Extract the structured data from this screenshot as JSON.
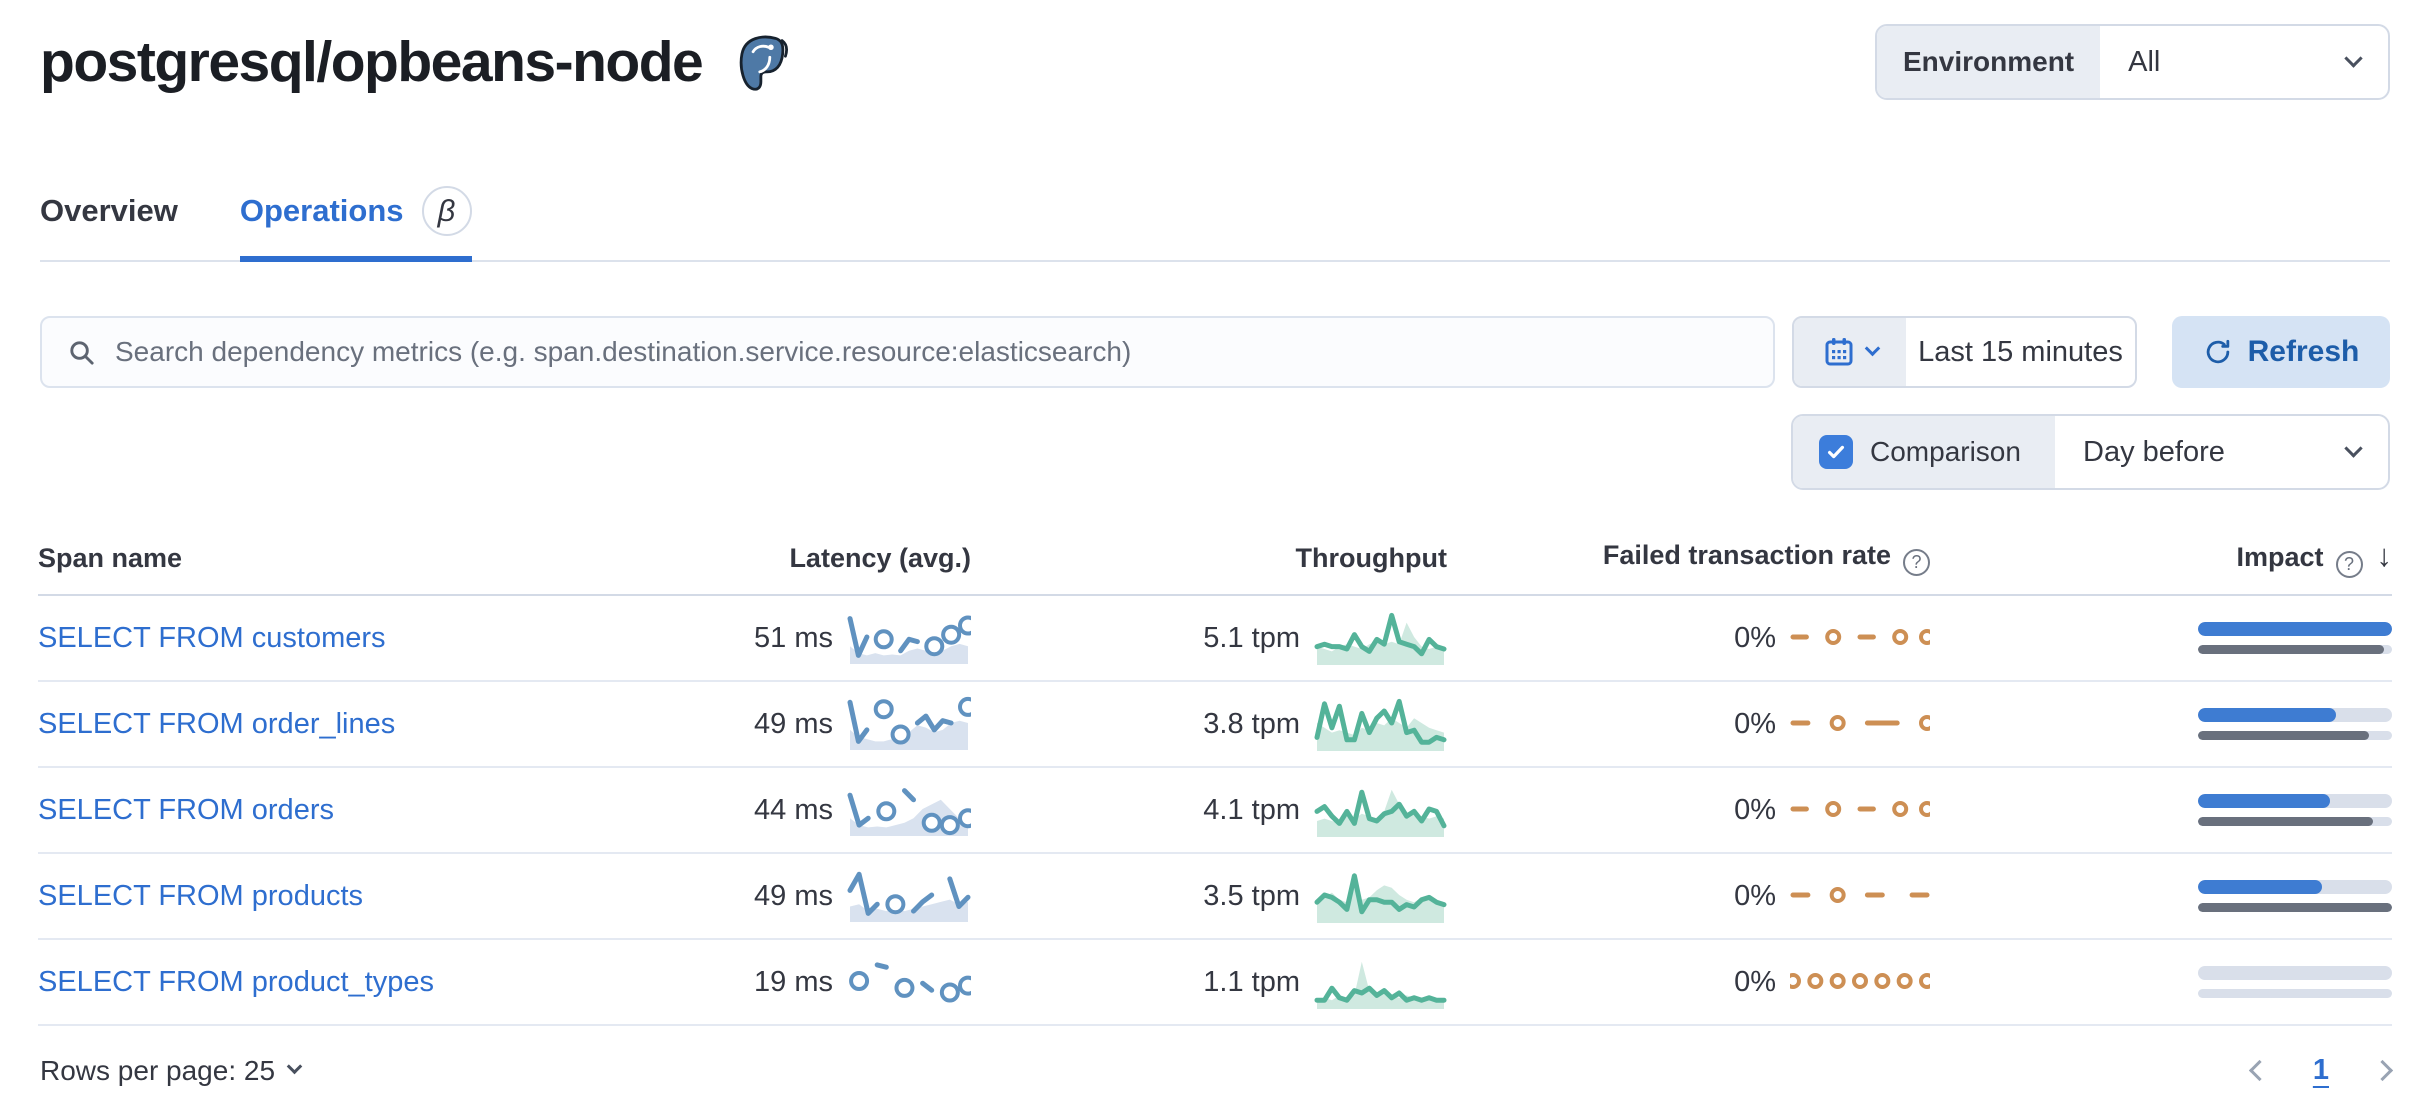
{
  "header": {
    "title": "postgresql/opbeans-node",
    "environment_label": "Environment",
    "environment_value": "All"
  },
  "tabs": [
    {
      "label": "Overview",
      "active": false
    },
    {
      "label": "Operations",
      "active": true,
      "badge": "β"
    }
  ],
  "toolbar": {
    "search_placeholder": "Search dependency metrics (e.g. span.destination.service.resource:elasticsearch)",
    "time_range": "Last 15 minutes",
    "refresh_label": "Refresh",
    "comparison_label": "Comparison",
    "comparison_checked": true,
    "comparison_value": "Day before"
  },
  "table": {
    "columns": [
      "Span name",
      "Latency (avg.)",
      "Throughput",
      "Failed transaction rate",
      "Impact"
    ],
    "sort": {
      "column": "Impact",
      "direction": "desc"
    },
    "rows": [
      {
        "span_name": "SELECT FROM customers",
        "latency": {
          "value": "51 ms",
          "spark": {
            "line": [
              0.9,
              0.1,
              0.5,
              null,
              0.45,
              null,
              0.2,
              0.45,
              0.4,
              null,
              0.3,
              null,
              0.55,
              null,
              0.75
            ],
            "area": [
              0.3,
              0.15,
              0.1,
              0.15,
              0.1,
              0.12,
              0.1,
              0.2,
              0.25,
              0.2,
              0.15,
              0.2,
              0.3,
              0.35,
              0.3
            ]
          }
        },
        "throughput": {
          "value": "5.1 tpm",
          "spark": {
            "line": [
              0.3,
              0.35,
              0.3,
              0.3,
              0.25,
              0.55,
              0.3,
              0.2,
              0.45,
              0.35,
              0.95,
              0.4,
              0.35,
              0.3,
              0.15,
              0.45,
              0.3,
              0.25
            ],
            "area": [
              0.3,
              0.25,
              0.2,
              0.3,
              0.35,
              0.3,
              0.25,
              0.35,
              0.4,
              0.35,
              0.4,
              0.35,
              0.8,
              0.5,
              0.3,
              0.25,
              0.3,
              0.25
            ]
          }
        },
        "failed_rate": {
          "value": "0%",
          "spark": {
            "line": [
              0.5,
              0.5,
              null,
              0.5,
              null,
              0.5,
              0.5,
              null,
              0.5,
              null,
              0.5
            ]
          }
        },
        "impact": {
          "current_pct": 100,
          "previous_pct": 96
        }
      },
      {
        "span_name": "SELECT FROM order_lines",
        "latency": {
          "value": "49 ms",
          "spark": {
            "line": [
              0.95,
              0.1,
              0.35,
              null,
              0.8,
              null,
              0.25,
              null,
              0.5,
              0.65,
              0.35,
              0.55,
              0.5,
              null,
              0.85
            ],
            "area": [
              0.35,
              0.2,
              0.15,
              0.1,
              0.1,
              0.15,
              0.1,
              0.3,
              0.45,
              0.4,
              0.3,
              0.35,
              0.5,
              0.55,
              0.5
            ]
          }
        },
        "throughput": {
          "value": "3.8 tpm",
          "spark": {
            "line": [
              0.2,
              0.9,
              0.4,
              0.85,
              0.15,
              0.15,
              0.7,
              0.3,
              0.6,
              0.75,
              0.5,
              0.95,
              0.3,
              0.35,
              0.1,
              0.1,
              0.2,
              0.15
            ],
            "area": [
              0.5,
              0.4,
              0.3,
              0.35,
              0.3,
              0.25,
              0.4,
              0.35,
              0.5,
              0.45,
              0.6,
              0.5,
              0.4,
              0.6,
              0.5,
              0.4,
              0.35,
              0.3
            ]
          }
        },
        "failed_rate": {
          "value": "0%",
          "spark": {
            "line": [
              0.5,
              0.5,
              null,
              0.5,
              null,
              0.5,
              0.5,
              0.5,
              null,
              0.5
            ]
          }
        },
        "impact": {
          "current_pct": 71,
          "previous_pct": 88
        }
      },
      {
        "span_name": "SELECT FROM orders",
        "latency": {
          "value": "44 ms",
          "spark": {
            "line": [
              0.8,
              0.15,
              0.3,
              null,
              0.45,
              null,
              0.9,
              0.7,
              null,
              0.2,
              null,
              0.15,
              null,
              0.3
            ],
            "area": [
              0.3,
              0.15,
              0.1,
              0.12,
              0.1,
              0.15,
              0.2,
              0.3,
              0.5,
              0.6,
              0.7,
              0.5,
              0.3,
              0.2
            ]
          }
        },
        "throughput": {
          "value": "4.1 tpm",
          "spark": {
            "line": [
              0.45,
              0.55,
              0.35,
              0.2,
              0.45,
              0.2,
              0.85,
              0.3,
              0.25,
              0.4,
              0.45,
              0.6,
              0.35,
              0.45,
              0.25,
              0.5,
              0.45,
              0.15
            ],
            "area": [
              0.25,
              0.3,
              0.25,
              0.2,
              0.35,
              0.3,
              0.4,
              0.35,
              0.3,
              0.45,
              0.9,
              0.6,
              0.4,
              0.45,
              0.35,
              0.3,
              0.35,
              0.3
            ]
          }
        },
        "failed_rate": {
          "value": "0%",
          "spark": {
            "line": [
              0.5,
              0.5,
              null,
              0.5,
              null,
              0.5,
              0.5,
              null,
              0.5,
              null,
              0.5
            ]
          }
        },
        "impact": {
          "current_pct": 68,
          "previous_pct": 90
        }
      },
      {
        "span_name": "SELECT FROM products",
        "latency": {
          "value": "49 ms",
          "spark": {
            "line": [
              0.6,
              0.95,
              0.1,
              0.3,
              null,
              0.3,
              null,
              0.15,
              0.35,
              0.5,
              null,
              0.85,
              0.25,
              0.45
            ],
            "area": [
              0.25,
              0.3,
              0.15,
              0.2,
              0.15,
              0.2,
              0.15,
              0.2,
              0.25,
              0.3,
              0.35,
              0.4,
              0.3,
              0.35
            ]
          }
        },
        "throughput": {
          "value": "3.5 tpm",
          "spark": {
            "line": [
              0.35,
              0.5,
              0.45,
              0.35,
              0.2,
              0.9,
              0.15,
              0.4,
              0.4,
              0.35,
              0.35,
              0.2,
              0.3,
              0.25,
              0.4,
              0.45,
              0.35,
              0.3
            ],
            "area": [
              0.3,
              0.45,
              0.55,
              0.4,
              0.35,
              0.75,
              0.4,
              0.45,
              0.6,
              0.7,
              0.65,
              0.5,
              0.4,
              0.35,
              0.45,
              0.5,
              0.4,
              0.35
            ]
          }
        },
        "failed_rate": {
          "value": "0%",
          "spark": {
            "line": [
              0.5,
              0.5,
              null,
              0.5,
              null,
              0.5,
              0.5,
              null,
              0.5,
              0.5
            ]
          }
        },
        "impact": {
          "current_pct": 64,
          "previous_pct": 100
        }
      },
      {
        "span_name": "SELECT FROM product_types",
        "latency": {
          "value": "19 ms",
          "spark": {
            "line": [
              null,
              0.5,
              null,
              0.85,
              0.8,
              null,
              0.35,
              null,
              0.45,
              0.3,
              null,
              0.25,
              null,
              0.4
            ],
            "area": []
          }
        },
        "throughput": {
          "value": "1.1 tpm",
          "spark": {
            "line": [
              0.1,
              0.1,
              0.35,
              0.15,
              0.1,
              0.3,
              0.25,
              0.35,
              0.2,
              0.3,
              0.15,
              0.25,
              0.1,
              0.15,
              0.1,
              0.15,
              0.1,
              0.1
            ],
            "area": [
              0.1,
              0.15,
              0.1,
              0.2,
              0.15,
              0.2,
              0.9,
              0.3,
              0.2,
              0.25,
              0.2,
              0.15,
              0.2,
              0.15,
              0.1,
              0.1,
              0.15,
              0.1
            ]
          }
        },
        "failed_rate": {
          "value": "0%",
          "spark": {
            "line": [
              0.5,
              null,
              0.5,
              null,
              0.5,
              null,
              0.5,
              null,
              0.5,
              null,
              0.5,
              null,
              0.5
            ]
          }
        },
        "impact": {
          "current_pct": 0,
          "previous_pct": 0
        }
      }
    ]
  },
  "footer": {
    "rows_per_page_label": "Rows per page: 25",
    "page": "1"
  },
  "colors": {
    "accent_blue": "#2e6ecf",
    "checkbox_blue": "#3c7ddb",
    "refresh_bg": "#d5e3f4",
    "refresh_text": "#1d5da9",
    "label_bg": "#e9edf3",
    "border": "#d3dae6",
    "impact_current": "#3e7cd2",
    "impact_previous": "#69707d",
    "impact_track": "#d9dfea"
  },
  "sparkline_palettes": {
    "latency": {
      "stroke": "#6092c0",
      "area": "#d9e2ef"
    },
    "throughput": {
      "stroke": "#54b399",
      "area": "#cfe9e0"
    },
    "failed": {
      "stroke": "#cd8f54",
      "area": ""
    }
  }
}
